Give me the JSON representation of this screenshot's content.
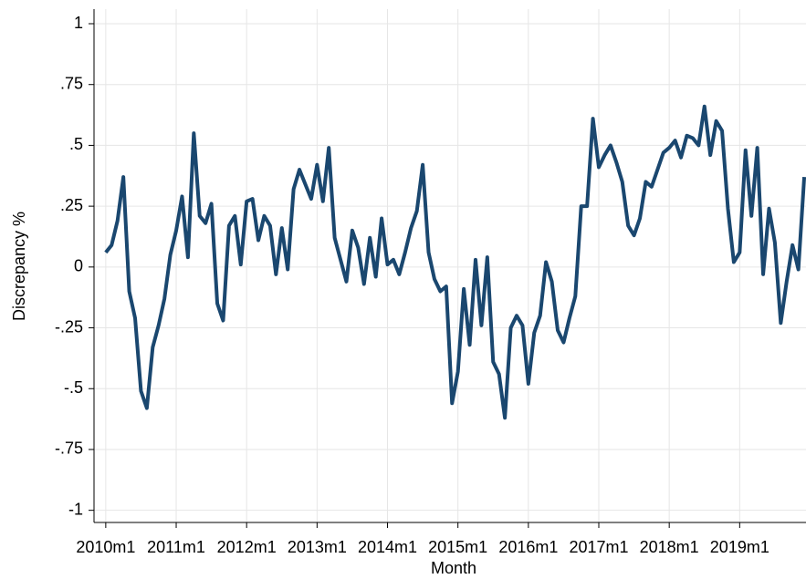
{
  "chart_data": {
    "type": "line",
    "x_label": "Month",
    "y_label": "Discrepancy %",
    "x": [
      600,
      601,
      602,
      603,
      604,
      605,
      606,
      607,
      608,
      609,
      610,
      611,
      612,
      613,
      614,
      615,
      616,
      617,
      618,
      619,
      620,
      621,
      622,
      623,
      624,
      625,
      626,
      627,
      628,
      629,
      630,
      631,
      632,
      633,
      634,
      635,
      636,
      637,
      638,
      639,
      640,
      641,
      642,
      643,
      644,
      645,
      646,
      647,
      648,
      649,
      650,
      651,
      652,
      653,
      654,
      655,
      656,
      657,
      658,
      659,
      660,
      661,
      662,
      663,
      664,
      665,
      666,
      667,
      668,
      669,
      670,
      671,
      672,
      673,
      674,
      675,
      676,
      677,
      678,
      679,
      680,
      681,
      682,
      683,
      684,
      685,
      686,
      687,
      688,
      689,
      690,
      691,
      692,
      693,
      694,
      695,
      696,
      697,
      698,
      699,
      700,
      701,
      702,
      703,
      704,
      705,
      706,
      707,
      708,
      709,
      710,
      711,
      712,
      713,
      714,
      715,
      716,
      717,
      718,
      719
    ],
    "values": [
      0.06,
      0.09,
      0.19,
      0.37,
      -0.1,
      -0.21,
      -0.51,
      -0.58,
      -0.33,
      -0.24,
      -0.13,
      0.05,
      0.15,
      0.29,
      0.04,
      0.55,
      0.21,
      0.18,
      0.26,
      -0.15,
      -0.22,
      0.17,
      0.21,
      0.01,
      0.27,
      0.28,
      0.11,
      0.21,
      0.17,
      -0.03,
      0.16,
      -0.01,
      0.32,
      0.4,
      0.34,
      0.28,
      0.42,
      0.27,
      0.49,
      0.12,
      0.03,
      -0.06,
      0.15,
      0.08,
      -0.07,
      0.12,
      -0.04,
      0.2,
      0.01,
      0.03,
      -0.03,
      0.06,
      0.16,
      0.23,
      0.42,
      0.06,
      -0.05,
      -0.1,
      -0.08,
      -0.56,
      -0.43,
      -0.09,
      -0.32,
      0.03,
      -0.24,
      0.04,
      -0.39,
      -0.44,
      -0.62,
      -0.25,
      -0.2,
      -0.24,
      -0.48,
      -0.27,
      -0.2,
      0.02,
      -0.06,
      -0.26,
      -0.31,
      -0.21,
      -0.12,
      0.25,
      0.25,
      0.61,
      0.41,
      0.46,
      0.5,
      0.43,
      0.35,
      0.17,
      0.13,
      0.2,
      0.35,
      0.33,
      0.4,
      0.47,
      0.49,
      0.52,
      0.45,
      0.54,
      0.53,
      0.5,
      0.66,
      0.46,
      0.6,
      0.56,
      0.24,
      0.02,
      0.06,
      0.48,
      0.21,
      0.49,
      -0.03,
      0.24,
      0.1,
      -0.23,
      -0.06,
      0.09,
      -0.01,
      0.37
    ],
    "color": "#1a476f",
    "xlim": [
      598,
      719.3
    ],
    "xticks": [
      {
        "value": 600,
        "label": "2010m1"
      },
      {
        "value": 612,
        "label": "2011m1"
      },
      {
        "value": 624,
        "label": "2012m1"
      },
      {
        "value": 636,
        "label": "2013m1"
      },
      {
        "value": 648,
        "label": "2014m1"
      },
      {
        "value": 660,
        "label": "2015m1"
      },
      {
        "value": 672,
        "label": "2016m1"
      },
      {
        "value": 684,
        "label": "2017m1"
      },
      {
        "value": 696,
        "label": "2018m1"
      },
      {
        "value": 708,
        "label": "2019m1"
      }
    ],
    "ylim": [
      -1.05,
      1.06
    ],
    "yticks": [
      -1,
      {
        "value": -0.75,
        "label": "-.75"
      },
      {
        "value": -0.5,
        "label": "-.5"
      },
      {
        "value": -0.25,
        "label": "-.25"
      },
      0,
      {
        "value": 0.25,
        "label": ".25"
      },
      {
        "value": 0.5,
        "label": ".5"
      },
      {
        "value": 0.75,
        "label": ".75"
      },
      1
    ],
    "grid": true
  }
}
